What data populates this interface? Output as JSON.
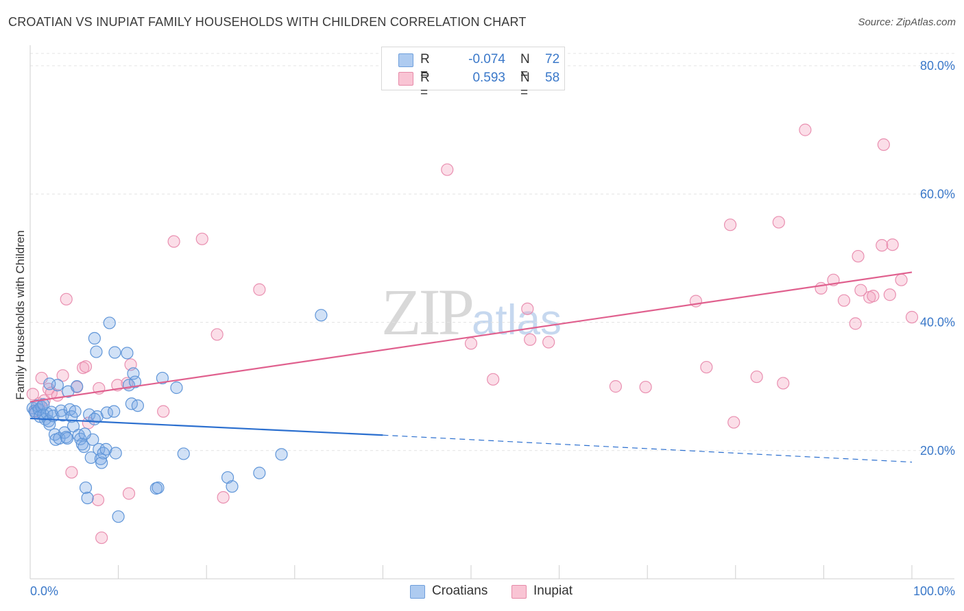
{
  "title": "CROATIAN VS INUPIAT FAMILY HOUSEHOLDS WITH CHILDREN CORRELATION CHART",
  "source": "Source: ZipAtlas.com",
  "watermark": {
    "zip": "ZIP",
    "atlas": "atlas"
  },
  "legend": {
    "rows": [
      {
        "r_label": "R =",
        "r_value": "-0.074",
        "n_label": "N =",
        "n_value": "72",
        "fill": "#aecbf0",
        "stroke": "#6f9fdc"
      },
      {
        "r_label": "R =",
        "r_value": "0.593",
        "n_label": "N =",
        "n_value": "58",
        "fill": "#f9c4d4",
        "stroke": "#e68aa8"
      }
    ]
  },
  "bottom_legend": [
    {
      "label": "Croatians",
      "fill": "#aecbf0",
      "stroke": "#6f9fdc"
    },
    {
      "label": "Inupiat",
      "fill": "#f9c4d4",
      "stroke": "#e68aa8"
    }
  ],
  "colors": {
    "croatians_fill": "rgba(122,170,230,0.35)",
    "croatians_stroke": "#5f95d8",
    "croatians_line": "#2b6fcf",
    "inupiat_fill": "rgba(244,160,188,0.35)",
    "inupiat_stroke": "#e98fb0",
    "inupiat_line": "#e0608e",
    "tick_label": "#3a78c9",
    "grid": "#e3e3e3"
  },
  "chart_data": {
    "type": "scatter",
    "title": "CROATIAN VS INUPIAT FAMILY HOUSEHOLDS WITH CHILDREN CORRELATION CHART",
    "xlabel": "",
    "ylabel": "Family Households with Children",
    "xlim": [
      0,
      100
    ],
    "ylim": [
      0,
      82
    ],
    "x_tick_labels": [
      "0.0%",
      "100.0%"
    ],
    "y_ticks": [
      20,
      40,
      60,
      80
    ],
    "y_tick_labels": [
      "20.0%",
      "40.0%",
      "60.0%",
      "80.0%"
    ],
    "grid": "horizontal dashed",
    "legend_placement": "top-center",
    "series": [
      {
        "name": "Croatians",
        "points": [
          [
            0.3,
            26.6
          ],
          [
            0.5,
            26.2
          ],
          [
            0.6,
            25.9
          ],
          [
            0.8,
            27.0
          ],
          [
            1.0,
            26.4
          ],
          [
            1.1,
            25.3
          ],
          [
            1.3,
            26.8
          ],
          [
            1.5,
            25.6
          ],
          [
            1.7,
            24.9
          ],
          [
            1.9,
            25.8
          ],
          [
            2.1,
            24.6
          ],
          [
            2.2,
            24.1
          ],
          [
            2.4,
            26.0
          ],
          [
            2.6,
            25.4
          ],
          [
            2.8,
            22.5
          ],
          [
            2.9,
            21.7
          ],
          [
            3.1,
            30.2
          ],
          [
            3.3,
            21.9
          ],
          [
            3.5,
            26.2
          ],
          [
            3.7,
            25.5
          ],
          [
            3.9,
            22.8
          ],
          [
            4.1,
            22.1
          ],
          [
            4.3,
            29.2
          ],
          [
            4.5,
            26.4
          ],
          [
            4.7,
            25.3
          ],
          [
            4.9,
            23.8
          ],
          [
            5.1,
            26.1
          ],
          [
            5.3,
            30.0
          ],
          [
            5.5,
            22.4
          ],
          [
            5.7,
            21.8
          ],
          [
            5.9,
            21.0
          ],
          [
            6.1,
            20.6
          ],
          [
            6.3,
            14.2
          ],
          [
            6.5,
            12.6
          ],
          [
            6.7,
            25.6
          ],
          [
            6.9,
            18.9
          ],
          [
            7.1,
            21.7
          ],
          [
            7.3,
            37.5
          ],
          [
            7.5,
            35.4
          ],
          [
            7.6,
            25.3
          ],
          [
            7.8,
            20.2
          ],
          [
            8.0,
            18.7
          ],
          [
            8.1,
            18.1
          ],
          [
            8.3,
            19.6
          ],
          [
            8.6,
            20.2
          ],
          [
            8.7,
            25.9
          ],
          [
            9.0,
            39.9
          ],
          [
            9.5,
            26.1
          ],
          [
            9.6,
            35.3
          ],
          [
            9.7,
            19.6
          ],
          [
            10.0,
            9.7
          ],
          [
            11.0,
            35.2
          ],
          [
            11.2,
            30.2
          ],
          [
            11.5,
            27.3
          ],
          [
            11.7,
            32.0
          ],
          [
            11.9,
            30.7
          ],
          [
            12.2,
            27.0
          ],
          [
            14.3,
            14.1
          ],
          [
            14.5,
            14.2
          ],
          [
            15.0,
            31.3
          ],
          [
            16.6,
            29.8
          ],
          [
            17.4,
            19.5
          ],
          [
            22.4,
            15.8
          ],
          [
            22.9,
            14.4
          ],
          [
            26.0,
            16.5
          ],
          [
            28.5,
            19.4
          ],
          [
            33.0,
            41.1
          ],
          [
            2.2,
            30.4
          ],
          [
            4.2,
            21.9
          ],
          [
            6.2,
            22.6
          ],
          [
            7.3,
            24.9
          ],
          [
            1.5,
            27.2
          ]
        ]
      },
      {
        "name": "Inupiat",
        "points": [
          [
            0.3,
            28.8
          ],
          [
            0.6,
            26.1
          ],
          [
            1.0,
            27.3
          ],
          [
            1.3,
            31.3
          ],
          [
            1.6,
            27.8
          ],
          [
            2.1,
            29.6
          ],
          [
            2.4,
            29.0
          ],
          [
            3.1,
            28.6
          ],
          [
            3.7,
            31.7
          ],
          [
            4.1,
            43.6
          ],
          [
            4.7,
            16.6
          ],
          [
            5.3,
            29.9
          ],
          [
            6.0,
            32.9
          ],
          [
            6.3,
            33.1
          ],
          [
            6.6,
            24.3
          ],
          [
            7.7,
            12.3
          ],
          [
            7.8,
            29.7
          ],
          [
            8.1,
            6.4
          ],
          [
            9.9,
            30.2
          ],
          [
            11.0,
            30.5
          ],
          [
            11.4,
            33.4
          ],
          [
            11.2,
            13.3
          ],
          [
            15.1,
            26.1
          ],
          [
            16.3,
            52.6
          ],
          [
            19.5,
            53.0
          ],
          [
            21.2,
            38.1
          ],
          [
            21.9,
            12.7
          ],
          [
            26.0,
            45.1
          ],
          [
            47.3,
            63.8
          ],
          [
            50.0,
            36.7
          ],
          [
            52.5,
            31.1
          ],
          [
            56.4,
            42.1
          ],
          [
            56.7,
            37.3
          ],
          [
            58.8,
            36.9
          ],
          [
            66.4,
            30.0
          ],
          [
            69.8,
            29.9
          ],
          [
            75.5,
            43.3
          ],
          [
            76.7,
            33.0
          ],
          [
            79.4,
            55.2
          ],
          [
            79.8,
            24.4
          ],
          [
            82.4,
            31.5
          ],
          [
            84.9,
            55.6
          ],
          [
            85.4,
            30.5
          ],
          [
            87.9,
            70.0
          ],
          [
            89.7,
            45.3
          ],
          [
            91.1,
            46.6
          ],
          [
            92.3,
            43.4
          ],
          [
            93.6,
            39.8
          ],
          [
            93.9,
            50.3
          ],
          [
            94.2,
            45.0
          ],
          [
            95.2,
            43.9
          ],
          [
            95.6,
            44.1
          ],
          [
            96.6,
            52.0
          ],
          [
            96.8,
            67.7
          ],
          [
            97.5,
            44.3
          ],
          [
            97.8,
            52.1
          ],
          [
            98.8,
            46.6
          ],
          [
            100.0,
            40.8
          ]
        ]
      }
    ],
    "trend_lines": [
      {
        "name": "Croatians",
        "from": [
          0,
          25.0
        ],
        "to": [
          40,
          22.4
        ],
        "dashed_to": [
          100,
          18.2
        ]
      },
      {
        "name": "Inupiat",
        "from": [
          0,
          27.6
        ],
        "to": [
          100,
          47.8
        ]
      }
    ]
  }
}
